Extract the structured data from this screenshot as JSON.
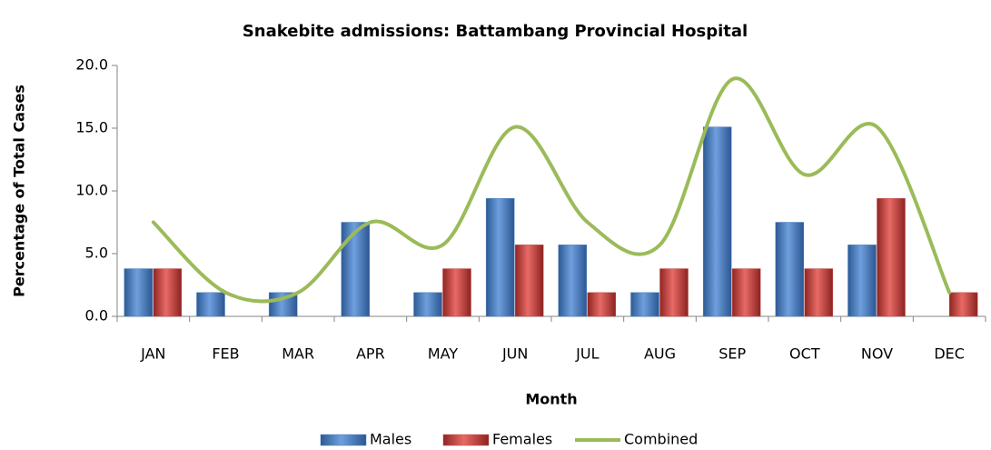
{
  "chart_data": {
    "type": "bar",
    "title": "Snakebite admissions: Battambang Provincial Hospital",
    "x_label": "Month",
    "y_label": "Percentage of Total Cases",
    "categories": [
      "JAN",
      "FEB",
      "MAR",
      "APR",
      "MAY",
      "JUN",
      "JUL",
      "AUG",
      "SEP",
      "OCT",
      "NOV",
      "DEC"
    ],
    "series": [
      {
        "name": "Males",
        "type": "bar",
        "color": "#4f81bd",
        "values": [
          3.8,
          1.9,
          1.9,
          7.5,
          1.9,
          9.4,
          5.7,
          1.9,
          15.1,
          7.5,
          5.7,
          0
        ]
      },
      {
        "name": "Females",
        "type": "bar",
        "color": "#c0504d",
        "values": [
          3.8,
          0,
          0,
          0,
          3.8,
          5.7,
          1.9,
          3.8,
          3.8,
          3.8,
          9.4,
          1.9
        ]
      },
      {
        "name": "Combined",
        "type": "line",
        "smooth": true,
        "color": "#9bbb59",
        "values": [
          7.5,
          1.9,
          1.9,
          7.5,
          5.7,
          15.1,
          7.5,
          5.7,
          18.9,
          11.3,
          15.1,
          1.9
        ]
      }
    ],
    "ylim": [
      0,
      20
    ],
    "yticks": [
      {
        "value": 0,
        "label": "0.0"
      },
      {
        "value": 5,
        "label": "5.0"
      },
      {
        "value": 10,
        "label": "10.0"
      },
      {
        "value": 15,
        "label": "15.0"
      },
      {
        "value": 20,
        "label": "20.0"
      }
    ],
    "grid": false,
    "legend": "bottom"
  }
}
